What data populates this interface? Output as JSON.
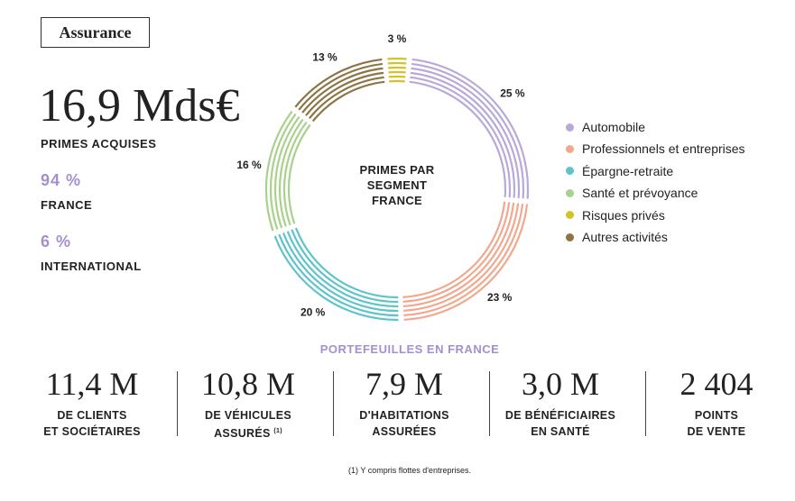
{
  "badge": "Assurance",
  "headline": {
    "value": "16,9 Mds€",
    "label": "PRIMES ACQUISES"
  },
  "splits": [
    {
      "value": "94 %",
      "label": "FRANCE"
    },
    {
      "value": "6 %",
      "label": "INTERNATIONAL"
    }
  ],
  "chart_data": {
    "type": "donut",
    "title": "PRIMES PAR SEGMENT FRANCE",
    "series": [
      {
        "name": "Automobile",
        "color": "#b9a9d8",
        "value": 25,
        "value_label": "25 %"
      },
      {
        "name": "Professionnels et entreprises",
        "color": "#f0a98e",
        "value": 23,
        "value_label": "23 %"
      },
      {
        "name": "Épargne-retraite",
        "color": "#5fc4c9",
        "value": 20,
        "value_label": "20 %"
      },
      {
        "name": "Santé et prévoyance",
        "color": "#a8d18b",
        "value": 16,
        "value_label": "16 %"
      },
      {
        "name": "Risques privés",
        "color": "#d4c22a",
        "value": 3,
        "value_label": "3 %"
      },
      {
        "name": "Autres activités",
        "color": "#8d7444",
        "value": 13,
        "value_label": "13 %"
      }
    ],
    "legend": "right"
  },
  "portfolio": {
    "title": "PORTEFEUILLES EN FRANCE",
    "items": [
      {
        "value": "11,4 M",
        "lines": [
          "DE CLIENTS",
          "ET SOCIÉTAIRES"
        ]
      },
      {
        "value": "10,8 M",
        "lines": [
          "DE VÉHICULES",
          "ASSURÉS"
        ],
        "note": "(1)"
      },
      {
        "value": "7,9 M",
        "lines": [
          "D'HABITATIONS",
          "ASSURÉES"
        ]
      },
      {
        "value": "3,0 M",
        "lines": [
          "DE BÉNÉFICIAIRES",
          "EN SANTÉ"
        ]
      },
      {
        "value": "2 404",
        "lines": [
          "POINTS",
          "DE VENTE"
        ]
      }
    ]
  },
  "footnote": "(1) Y compris flottes d'entreprises."
}
